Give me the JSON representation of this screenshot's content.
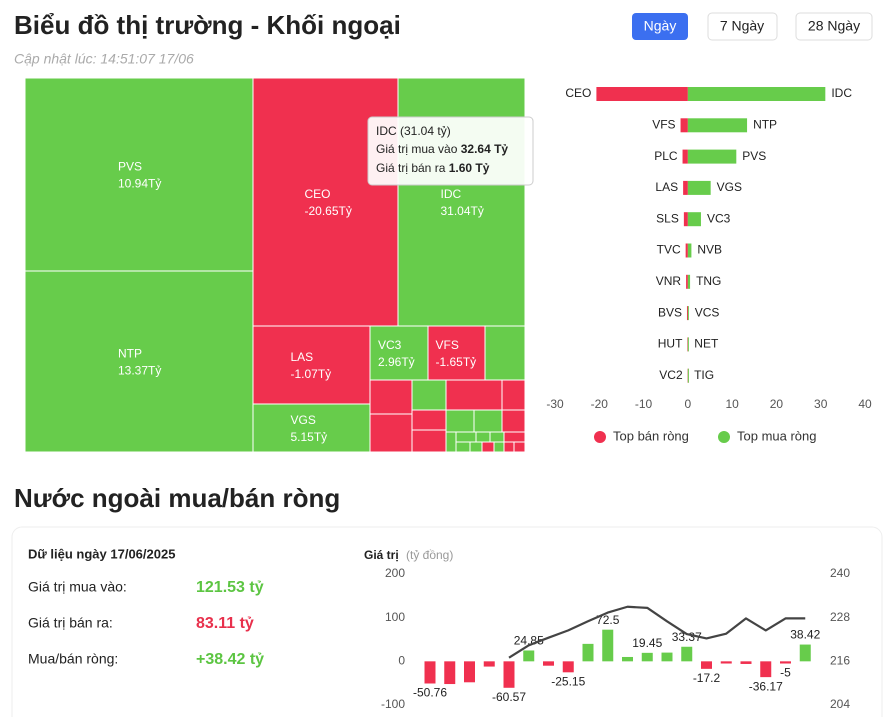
{
  "header": {
    "title": "Biểu đồ thị trường - Khối ngoại",
    "update": "Cập nhật lúc: 14:51:07 17/06",
    "ranges": [
      "Ngày",
      "7 Ngày",
      "28 Ngày"
    ]
  },
  "chart_data": [
    {
      "type": "treemap",
      "positive_color": "#67cc4b",
      "negative_color": "#f0304f",
      "items": [
        {
          "name": "PVS",
          "value": 10.94,
          "value_label": "10.94Tỷ"
        },
        {
          "name": "NTP",
          "value": 13.37,
          "value_label": "13.37Tỷ"
        },
        {
          "name": "CEO",
          "value": -20.65,
          "value_label": "-20.65Tỷ"
        },
        {
          "name": "IDC",
          "value": 31.04,
          "value_label": "31.04Tỷ"
        },
        {
          "name": "LAS",
          "value": -1.07,
          "value_label": "-1.07Tỷ"
        },
        {
          "name": "VGS",
          "value": 5.15,
          "value_label": "5.15Tỷ"
        },
        {
          "name": "VC3",
          "value": 2.96,
          "value_label": "2.96Tỷ"
        },
        {
          "name": "VFS",
          "value": -1.65,
          "value_label": "-1.65Tỷ"
        }
      ],
      "tooltip": {
        "title": "IDC (31.04 tỷ)",
        "lines": [
          {
            "label": "Giá trị mua vào",
            "value": "32.64 Tỷ"
          },
          {
            "label": "Giá trị bán ra",
            "value": "1.60 Tỷ"
          }
        ]
      }
    },
    {
      "type": "butterfly",
      "xlim": [
        -30,
        40
      ],
      "xticks": [
        -30,
        -20,
        -10,
        0,
        10,
        20,
        30,
        40
      ],
      "series": [
        {
          "name": "Top bán ròng",
          "color": "#f0304f",
          "categories": [
            "CEO",
            "VFS",
            "PLC",
            "LAS",
            "SLS",
            "TVC",
            "VNR",
            "BVS",
            "HUT",
            "VC2"
          ],
          "values": [
            -20.65,
            -1.65,
            -1.2,
            -1.07,
            -0.9,
            -0.5,
            -0.4,
            -0.2,
            -0.1,
            -0.05
          ]
        },
        {
          "name": "Top mua ròng",
          "color": "#67cc4b",
          "categories": [
            "IDC",
            "NTP",
            "PVS",
            "VGS",
            "VC3",
            "NVB",
            "TNG",
            "VCS",
            "NET",
            "TIG"
          ],
          "values": [
            31.04,
            13.37,
            10.94,
            5.15,
            2.96,
            0.8,
            0.5,
            0.2,
            0.1,
            0.05
          ]
        }
      ]
    },
    {
      "type": "bar-line",
      "y_label": "Giá trị",
      "y_unit": "(tỷ đồng)",
      "ylim": [
        -100,
        200
      ],
      "yticks": [
        -100,
        0,
        100,
        200
      ],
      "y2lim": [
        204,
        240
      ],
      "y2ticks": [
        204,
        216,
        228,
        240
      ],
      "positive_color": "#67cc4b",
      "negative_color": "#f0304f",
      "series": [
        {
          "type": "bar",
          "values": [
            -50.76,
            -52,
            -48,
            -12,
            -60.57,
            24.85,
            -10,
            -25.15,
            40,
            72.5,
            10,
            19.45,
            20,
            33.37,
            -17.2,
            -5,
            -6,
            -36.17,
            -5,
            38.42
          ],
          "value_labels": [
            "-50.76",
            null,
            null,
            null,
            "-60.57",
            "24.85",
            null,
            "-25.15",
            null,
            "72.5",
            null,
            "19.45",
            null,
            "33.37",
            "-17.2",
            null,
            null,
            "-36.17",
            "-5",
            "38.42"
          ]
        },
        {
          "type": "line",
          "axis": "y2",
          "color": "#444444",
          "values": [
            null,
            null,
            null,
            null,
            217,
            220.4,
            222.5,
            224.5,
            227,
            229.4,
            231,
            230.7,
            227,
            223.5,
            222.3,
            223.6,
            227.8,
            224.5,
            227.8,
            227.8
          ]
        }
      ]
    }
  ],
  "section": {
    "title": "Nước ngoài mua/bán ròng"
  },
  "summary": {
    "date": "Dữ liệu ngày 17/06/2025",
    "rows": [
      {
        "label": "Giá trị mua vào:",
        "value": "121.53 tỷ",
        "color": "#5cc542"
      },
      {
        "label": "Giá trị bán ra:",
        "value": "83.11 tỷ",
        "color": "#e8304c"
      },
      {
        "label": "Mua/bán ròng:",
        "value": "+38.42 tỷ",
        "color": "#5cc542"
      }
    ]
  }
}
